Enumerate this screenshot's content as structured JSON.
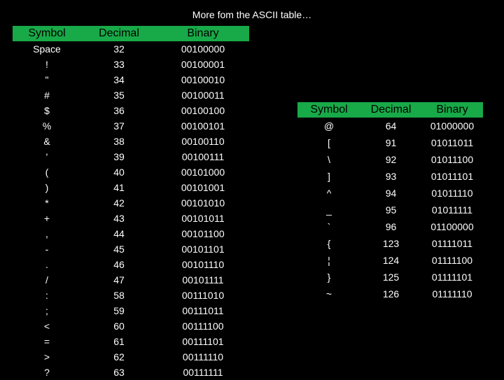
{
  "title": "More fom the ASCII table…",
  "colors": {
    "background": "#000000",
    "header_bg": "#18a948",
    "header_text": "#000000",
    "row_text": "#ffffff"
  },
  "headers": {
    "symbol": "Symbol",
    "decimal": "Decimal",
    "binary": "Binary"
  },
  "left_table": {
    "rows": [
      {
        "symbol": "Space",
        "decimal": "32",
        "binary": "00100000"
      },
      {
        "symbol": "!",
        "decimal": "33",
        "binary": "00100001"
      },
      {
        "symbol": "\"",
        "decimal": "34",
        "binary": "00100010"
      },
      {
        "symbol": "#",
        "decimal": "35",
        "binary": "00100011"
      },
      {
        "symbol": "$",
        "decimal": "36",
        "binary": "00100100"
      },
      {
        "symbol": "%",
        "decimal": "37",
        "binary": "00100101"
      },
      {
        "symbol": "&",
        "decimal": "38",
        "binary": "00100110"
      },
      {
        "symbol": "'",
        "decimal": "39",
        "binary": "00100111"
      },
      {
        "symbol": "(",
        "decimal": "40",
        "binary": "00101000"
      },
      {
        "symbol": ")",
        "decimal": "41",
        "binary": "00101001"
      },
      {
        "symbol": "*",
        "decimal": "42",
        "binary": "00101010"
      },
      {
        "symbol": "+",
        "decimal": "43",
        "binary": "00101011"
      },
      {
        "symbol": ",",
        "decimal": "44",
        "binary": "00101100"
      },
      {
        "symbol": "-",
        "decimal": "45",
        "binary": "00101101"
      },
      {
        "symbol": ".",
        "decimal": "46",
        "binary": "00101110"
      },
      {
        "symbol": "/",
        "decimal": "47",
        "binary": "00101111"
      },
      {
        "symbol": ":",
        "decimal": "58",
        "binary": "00111010"
      },
      {
        "symbol": ";",
        "decimal": "59",
        "binary": "00111011"
      },
      {
        "symbol": "<",
        "decimal": "60",
        "binary": "00111100"
      },
      {
        "symbol": "=",
        "decimal": "61",
        "binary": "00111101"
      },
      {
        "symbol": ">",
        "decimal": "62",
        "binary": "00111110"
      },
      {
        "symbol": "?",
        "decimal": "63",
        "binary": "00111111"
      }
    ]
  },
  "right_table": {
    "rows": [
      {
        "symbol": "@",
        "decimal": "64",
        "binary": "01000000"
      },
      {
        "symbol": "[",
        "decimal": "91",
        "binary": "01011011"
      },
      {
        "symbol": "\\",
        "decimal": "92",
        "binary": "01011100"
      },
      {
        "symbol": "]",
        "decimal": "93",
        "binary": "01011101"
      },
      {
        "symbol": "^",
        "decimal": "94",
        "binary": "01011110"
      },
      {
        "symbol": "_",
        "decimal": "95",
        "binary": "01011111"
      },
      {
        "symbol": "`",
        "decimal": "96",
        "binary": "01100000"
      },
      {
        "symbol": "{",
        "decimal": "123",
        "binary": "01111011"
      },
      {
        "symbol": "¦",
        "decimal": "124",
        "binary": "01111100"
      },
      {
        "symbol": "}",
        "decimal": "125",
        "binary": "01111101"
      },
      {
        "symbol": "~",
        "decimal": "126",
        "binary": "01111110"
      }
    ]
  }
}
